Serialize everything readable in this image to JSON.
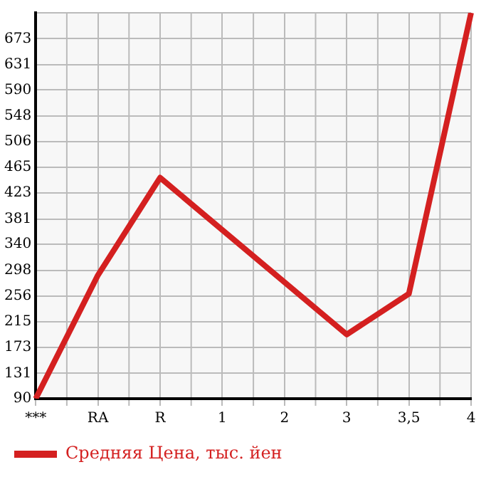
{
  "chart_data": {
    "type": "line",
    "categories": [
      "***",
      "RA",
      "R",
      "1",
      "2",
      "3",
      "3,5",
      "4"
    ],
    "series": [
      {
        "name": "Средняя Цена, тыс. йен",
        "color": "#d42020",
        "values": [
          90,
          290,
          448,
          null,
          null,
          194,
          260,
          715
        ]
      }
    ],
    "ylim": [
      90,
      715
    ],
    "yticks": [
      90,
      131,
      173,
      215,
      256,
      298,
      340,
      381,
      423,
      465,
      506,
      548,
      590,
      631,
      673,
      {
        "value": 715,
        "label": null
      }
    ],
    "grid": true,
    "legend": "bottom",
    "marker": "none"
  }
}
